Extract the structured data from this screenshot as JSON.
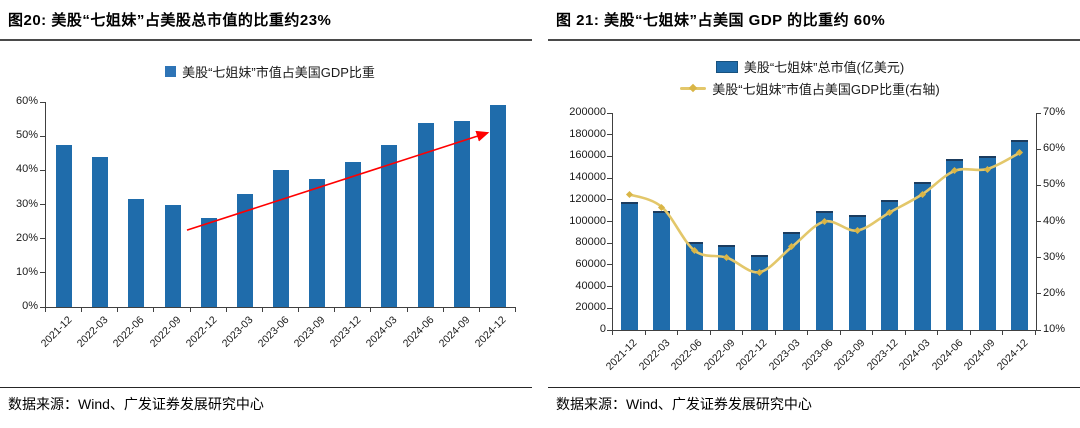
{
  "page": {
    "background": "#FFFFFF"
  },
  "panels": [
    {
      "title": "图20: 美股“七姐妹”占美股总市值的比重约23%",
      "legend": [
        {
          "label": "美股“七姐妹”市值占美国GDP比重",
          "marker": "bar-square",
          "color": "#2E74B6"
        }
      ],
      "source": "数据来源：Wind、广发证券发展研究中心"
    },
    {
      "title": "图 21: 美股“七姐妹”占美国 GDP 的比重约 60%",
      "legend": [
        {
          "label": "美股“七姐妹”总市值(亿美元)",
          "marker": "bar-rect",
          "color": "#1F6CAB"
        },
        {
          "label": "美股“七姐妹”市值占美国GDP比重(右轴)",
          "marker": "line-dot",
          "color": "#E3C76A"
        }
      ],
      "source": "数据来源：Wind、广发证券发展研究中心"
    }
  ],
  "chart_data": [
    {
      "type": "bar",
      "title": "美股“七姐妹”市值占美国GDP比重",
      "categories": [
        "2021-12",
        "2022-03",
        "2022-06",
        "2022-09",
        "2022-12",
        "2023-03",
        "2023-06",
        "2023-09",
        "2023-12",
        "2024-03",
        "2024-06",
        "2024-09",
        "2024-12"
      ],
      "values": [
        47.5,
        44,
        31.5,
        30,
        26,
        33,
        40,
        37.5,
        42.5,
        47.5,
        54,
        54.5,
        59
      ],
      "xlabel": "",
      "ylabel": "",
      "ylim": [
        0,
        60
      ],
      "ytick_labels": [
        "0%",
        "10%",
        "20%",
        "30%",
        "40%",
        "50%",
        "60%"
      ],
      "grid": false,
      "legend_position": "top",
      "bar_color": "#1F6CAB",
      "annotation": {
        "type": "trend-arrow",
        "color": "#FF0000",
        "from": {
          "x_frac": 0.3,
          "y_value": 22.5
        },
        "to": {
          "x_frac": 0.94,
          "y_value": 51
        }
      }
    },
    {
      "type": "bar+line",
      "categories": [
        "2021-12",
        "2022-03",
        "2022-06",
        "2022-09",
        "2022-12",
        "2023-03",
        "2023-06",
        "2023-09",
        "2023-12",
        "2024-03",
        "2024-06",
        "2024-09",
        "2024-12"
      ],
      "series": [
        {
          "name": "美股“七姐妹”总市值(亿美元)",
          "type": "bar",
          "axis": "left",
          "color": "#1F6CAB",
          "cap_color": "#1B3C5F",
          "values": [
            118000,
            110000,
            81000,
            78000,
            69000,
            90000,
            110000,
            106000,
            120000,
            136000,
            158000,
            160000,
            175000
          ]
        },
        {
          "name": "美股“七姐妹”市值占美国GDP比重(右轴)",
          "type": "line",
          "axis": "right",
          "color": "#E3C76A",
          "marker_color": "#D9B546",
          "values": [
            47.5,
            44,
            32,
            30,
            26,
            33,
            40,
            37.5,
            42.5,
            47.5,
            54,
            54.5,
            59
          ]
        }
      ],
      "ylim_left": [
        0,
        200000
      ],
      "ytick_labels_left": [
        "0",
        "20000",
        "40000",
        "60000",
        "80000",
        "100000",
        "120000",
        "140000",
        "160000",
        "180000",
        "200000"
      ],
      "ylim_right": [
        10,
        70
      ],
      "ytick_labels_right": [
        "10%",
        "20%",
        "30%",
        "40%",
        "50%",
        "60%",
        "70%"
      ],
      "grid": false,
      "legend_position": "top"
    }
  ]
}
